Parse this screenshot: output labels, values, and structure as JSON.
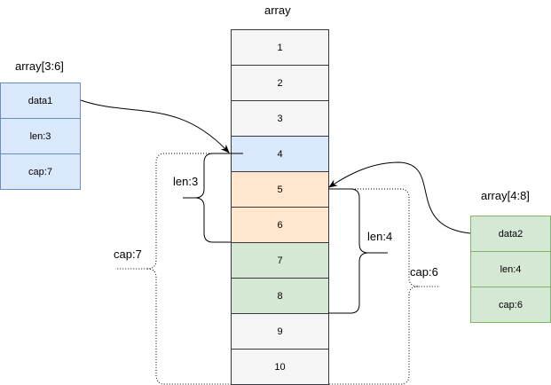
{
  "title": "array",
  "cells": [
    "1",
    "2",
    "3",
    "4",
    "5",
    "6",
    "7",
    "8",
    "9",
    "10"
  ],
  "slice_left": {
    "title": "array[3:6]",
    "fields": [
      "data1",
      "len:3",
      "cap:7"
    ]
  },
  "slice_right": {
    "title": "array[4:8]",
    "fields": [
      "data2",
      "len:4",
      "cap:6"
    ]
  },
  "annotations": {
    "left_len": "len:3",
    "left_cap": "cap:7",
    "right_len": "len:4",
    "right_cap": "cap:6"
  },
  "colors": {
    "blue": "#dae8fc",
    "orange": "#ffe6cc",
    "green": "#d5e8d4",
    "gray": "#f5f5f5"
  }
}
